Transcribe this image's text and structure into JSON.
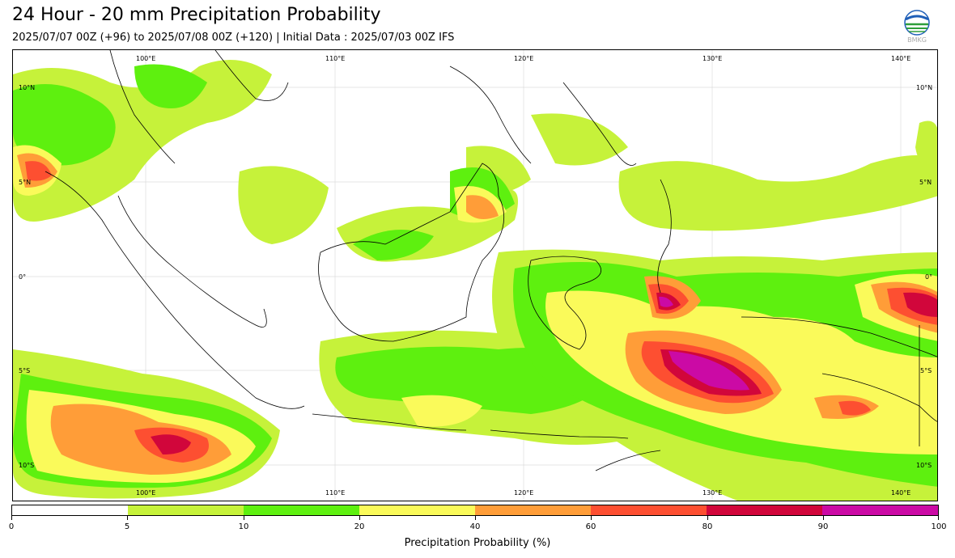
{
  "title": "24 Hour - 20 mm Precipitation Probability",
  "subtitle": "2025/07/07 00Z (+96) to 2025/07/08 00Z (+120) | Initial Data : 2025/07/03 00Z IFS",
  "logo": {
    "name": "bmkg-logo",
    "text": "BMKG"
  },
  "map": {
    "lon_labels_top": [
      "100°E",
      "110°E",
      "120°E",
      "130°E",
      "140°E"
    ],
    "lon_labels_bottom": [
      "100°E",
      "110°E",
      "120°E",
      "130°E",
      "140°E"
    ],
    "lat_labels_left": [
      "10°N",
      "5°N",
      "0°",
      "5°S",
      "10°S"
    ],
    "lat_labels_right": [
      "10°N",
      "5°N",
      "0°",
      "5°S",
      "10°S"
    ]
  },
  "colorbar": {
    "title": "Precipitation Probability (%)",
    "ticks": [
      "0",
      "5",
      "10",
      "20",
      "40",
      "60",
      "80",
      "90",
      "100"
    ],
    "colors": [
      "#ffffff",
      "#c6f23a",
      "#5ef00f",
      "#fafa5a",
      "#ff9d38",
      "#fd4f31",
      "#d1063b",
      "#cb0aa5"
    ]
  }
}
